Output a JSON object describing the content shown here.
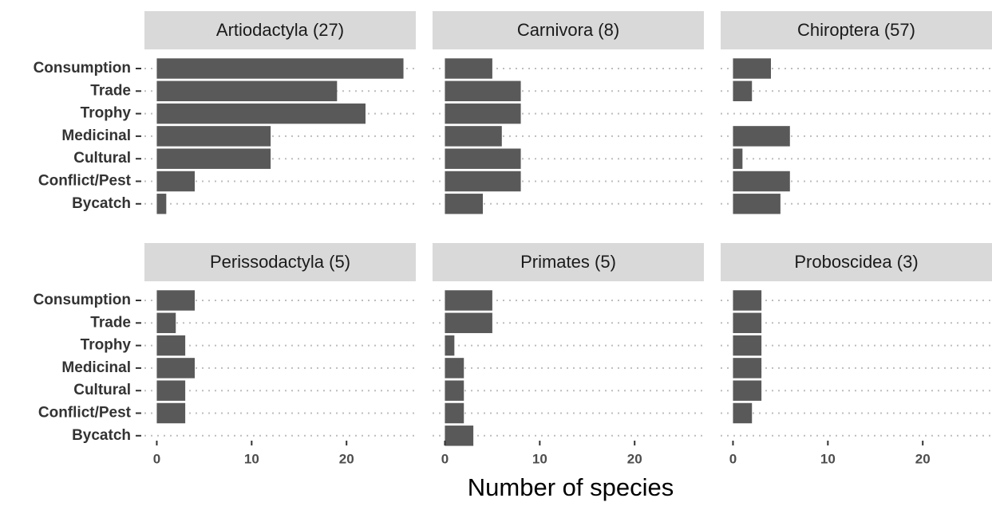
{
  "chart_data": {
    "type": "bar",
    "orientation": "horizontal",
    "xlabel": "Number of species",
    "categories": [
      "Consumption",
      "Trade",
      "Trophy",
      "Medicinal",
      "Cultural",
      "Conflict/Pest",
      "Bycatch"
    ],
    "xlim": [
      -1.3,
      27.3
    ],
    "xticks": [
      0,
      10,
      20
    ],
    "color": "#595959",
    "grid": true,
    "panels": [
      {
        "title": "Artiodactyla (27)",
        "values": [
          26,
          19,
          22,
          12,
          12,
          4,
          1
        ]
      },
      {
        "title": "Carnivora (8)",
        "values": [
          5,
          8,
          8,
          6,
          8,
          8,
          4
        ]
      },
      {
        "title": "Chiroptera (57)",
        "values": [
          4,
          2,
          null,
          6,
          1,
          6,
          5
        ]
      },
      {
        "title": "Perissodactyla (5)",
        "values": [
          4,
          2,
          3,
          4,
          3,
          3,
          null
        ]
      },
      {
        "title": "Primates (5)",
        "values": [
          5,
          5,
          1,
          2,
          2,
          2,
          3
        ]
      },
      {
        "title": "Proboscidea (3)",
        "values": [
          3,
          3,
          3,
          3,
          3,
          2,
          null
        ]
      }
    ]
  }
}
